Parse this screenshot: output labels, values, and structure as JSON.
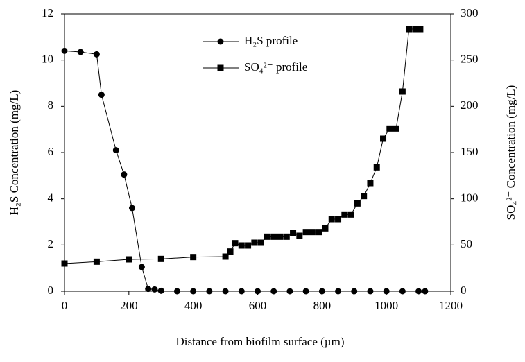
{
  "chart_data": {
    "type": "line",
    "xlabel": "Distance from biofilm surface (µm)",
    "ylabel": "H₂S Concentration (mg/L)",
    "y2label": "SO₄²⁻ Concentration (mg/L)",
    "xlim": [
      0,
      1200
    ],
    "xticks": [
      0,
      200,
      400,
      600,
      800,
      1000,
      1200
    ],
    "ylim": [
      0,
      12
    ],
    "yticks": [
      0,
      2,
      4,
      6,
      8,
      10,
      12
    ],
    "y2lim": [
      0,
      300
    ],
    "y2ticks": [
      0,
      50,
      100,
      150,
      200,
      250,
      300
    ],
    "legend": "top",
    "series": [
      {
        "name": "H₂S profile",
        "color": "#000000",
        "marker": "circle",
        "axis": "y",
        "x": [
          0,
          50,
          100,
          115,
          160,
          185,
          210,
          240,
          260,
          280,
          300,
          350,
          400,
          450,
          500,
          550,
          600,
          650,
          700,
          750,
          800,
          850,
          900,
          950,
          1000,
          1050,
          1100,
          1120
        ],
        "values": [
          10.4,
          10.35,
          10.25,
          8.5,
          6.1,
          5.05,
          3.6,
          1.05,
          0.1,
          0.08,
          0.02,
          0,
          0,
          0,
          0,
          0,
          0,
          0,
          0,
          0,
          0,
          0,
          0,
          0,
          0,
          0,
          0,
          0
        ]
      },
      {
        "name": "SO₄²⁻ profile",
        "color": "#000000",
        "marker": "square",
        "axis": "y2",
        "x": [
          0,
          100,
          200,
          300,
          400,
          500,
          515,
          530,
          550,
          570,
          590,
          610,
          630,
          650,
          670,
          690,
          710,
          730,
          750,
          770,
          790,
          810,
          830,
          850,
          870,
          890,
          910,
          930,
          950,
          970,
          990,
          1010,
          1030,
          1050,
          1070,
          1090,
          1105
        ],
        "values": [
          30,
          32,
          34.5,
          35,
          37,
          37.5,
          43,
          52,
          49.5,
          49.5,
          52.5,
          52.5,
          59,
          59,
          59,
          59,
          63,
          60,
          64,
          64,
          64,
          68,
          78,
          78,
          83,
          83,
          95,
          103,
          117,
          134,
          165,
          176,
          176,
          216,
          283.5,
          283.5,
          283.5
        ]
      }
    ]
  }
}
